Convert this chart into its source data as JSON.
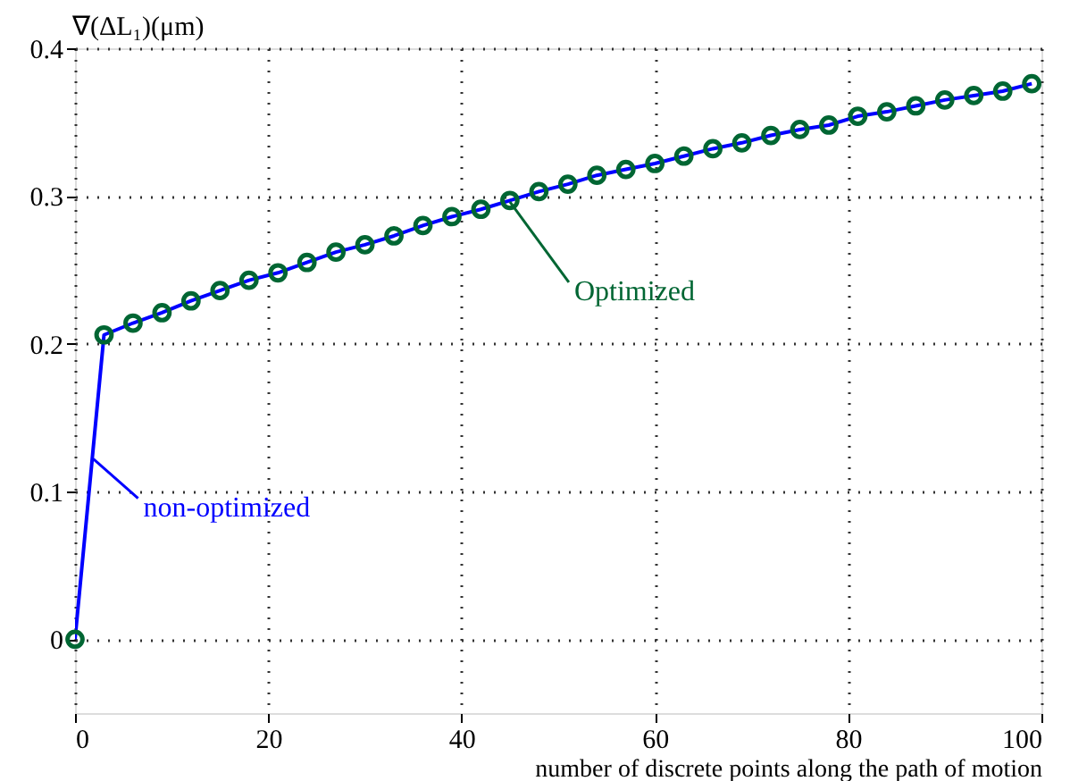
{
  "chart_data": {
    "type": "line",
    "ylabel": "∇(ΔL₁)(μm)",
    "xlabel": "number of discrete points along the path of motion",
    "x": [
      0,
      3,
      6,
      9,
      12,
      15,
      18,
      21,
      24,
      27,
      30,
      33,
      36,
      39,
      42,
      45,
      48,
      51,
      54,
      57,
      60,
      63,
      66,
      69,
      72,
      75,
      78,
      81,
      84,
      87,
      90,
      93,
      96,
      99
    ],
    "series": [
      {
        "color": "#0000ff",
        "marker": "none",
        "values": [
          0,
          0.206,
          0.214,
          0.221,
          0.229,
          0.236,
          0.243,
          0.248,
          0.255,
          0.262,
          0.267,
          0.273,
          0.28,
          0.286,
          0.291,
          0.297,
          0.303,
          0.308,
          0.314,
          0.318,
          0.322,
          0.327,
          0.332,
          0.336,
          0.341,
          0.345,
          0.348,
          0.354,
          0.357,
          0.361,
          0.365,
          0.368,
          0.371,
          0.376
        ]
      },
      {
        "type": "scatter",
        "color": "#006633",
        "marker": "circle",
        "values": [
          0,
          0.206,
          0.214,
          0.221,
          0.229,
          0.236,
          0.243,
          0.248,
          0.255,
          0.262,
          0.267,
          0.273,
          0.28,
          0.286,
          0.291,
          0.297,
          0.303,
          0.308,
          0.314,
          0.318,
          0.322,
          0.327,
          0.332,
          0.336,
          0.341,
          0.345,
          0.348,
          0.354,
          0.357,
          0.361,
          0.365,
          0.368,
          0.371,
          0.376
        ]
      }
    ],
    "annotations": [
      {
        "text": "non-optimized",
        "x": 1.9,
        "y": 0.122
      },
      {
        "text": "Optimized",
        "x": 45,
        "y": 0.296
      }
    ],
    "xlim": [
      0,
      100
    ],
    "xticks": [
      0,
      20,
      40,
      60,
      80,
      100
    ],
    "ylim": [
      -0.05,
      0.4
    ],
    "yticks": [
      0,
      0.1,
      0.2,
      0.3,
      0.4
    ],
    "grid": true
  }
}
